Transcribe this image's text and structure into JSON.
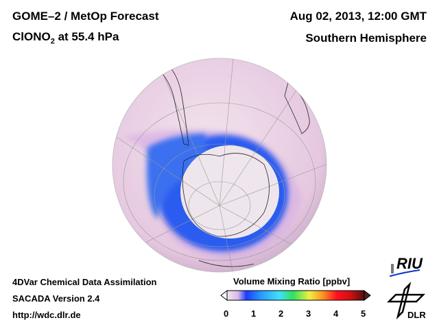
{
  "header": {
    "title": "GOME–2 / MetOp Forecast",
    "species_prefix": "ClONO",
    "species_sub": "2",
    "species_suffix": " at 55.4 hPa",
    "datetime": "Aug 02, 2013, 12:00 GMT",
    "region": "Southern Hemisphere"
  },
  "footer": {
    "line1": "4DVar Chemical Data Assimilation",
    "line2": "SACADA Version 2.4",
    "line3": "http://wdc.dlr.de"
  },
  "colorbar": {
    "title": "Volume Mixing Ratio [ppbv]",
    "ticks": [
      "0",
      "1",
      "2",
      "3",
      "4",
      "5"
    ],
    "range": [
      0,
      5
    ],
    "colors": [
      "#f2e6ee",
      "#d8b8e8",
      "#1a3cff",
      "#2a8cff",
      "#40e0ff",
      "#30e060",
      "#f0f040",
      "#ff9020",
      "#ff1020",
      "#d01010",
      "#501010"
    ]
  },
  "logos": {
    "riu": "RIU",
    "dlr": "DLR"
  }
}
